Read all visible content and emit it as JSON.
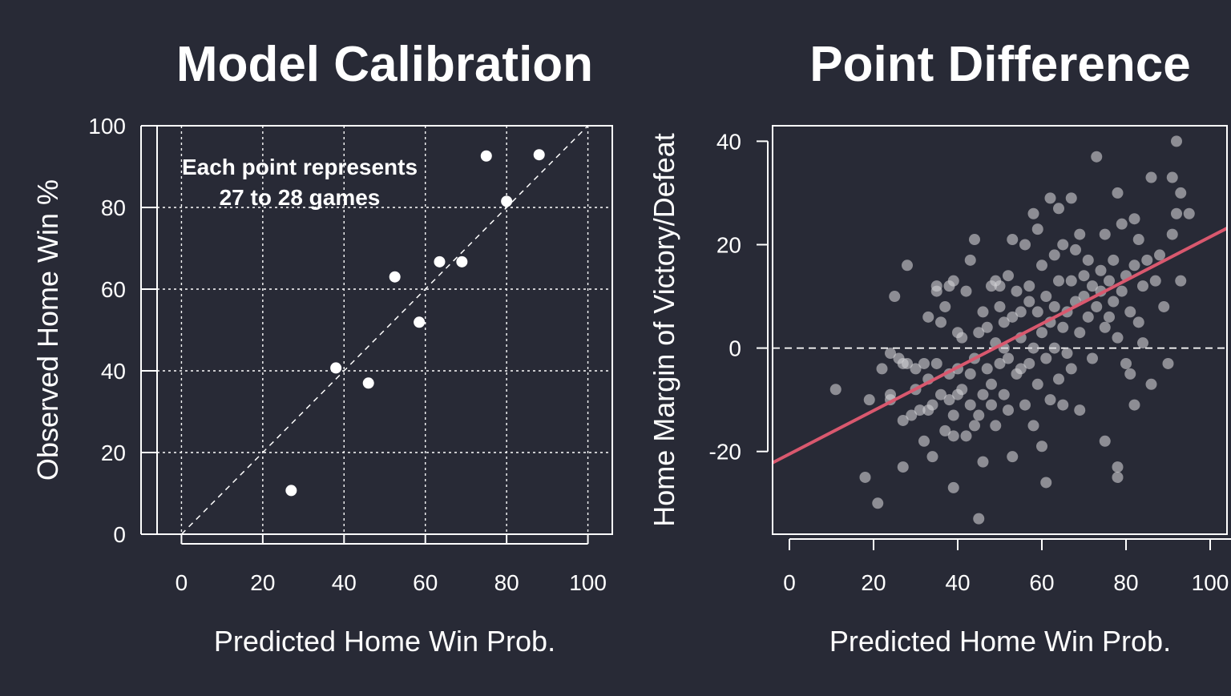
{
  "colors": {
    "background": "#282a36",
    "foreground": "#ffffff",
    "scatter_point": "#d0d0d4",
    "regression_line": "#d9586e"
  },
  "chart_data": [
    {
      "type": "scatter",
      "title": "Model Calibration",
      "xlabel": "Predicted Home Win Prob.",
      "ylabel": "Observed Home Win %",
      "xlim": [
        -6,
        106
      ],
      "ylim": [
        0,
        100
      ],
      "xticks": [
        "0",
        "20",
        "40",
        "60",
        "80",
        "100"
      ],
      "yticks": [
        "0",
        "20",
        "40",
        "60",
        "80",
        "100"
      ],
      "grid": true,
      "annotation": [
        "Each point represents",
        "27 to 28 games"
      ],
      "reference_line": "y = x (dashed)",
      "points": [
        {
          "x": 27,
          "y": 10.7
        },
        {
          "x": 38,
          "y": 40.7
        },
        {
          "x": 46,
          "y": 37
        },
        {
          "x": 52.5,
          "y": 63
        },
        {
          "x": 58.5,
          "y": 51.9
        },
        {
          "x": 63.5,
          "y": 66.7
        },
        {
          "x": 69,
          "y": 66.7
        },
        {
          "x": 75,
          "y": 92.6
        },
        {
          "x": 80,
          "y": 81.5
        },
        {
          "x": 88,
          "y": 92.9
        }
      ]
    },
    {
      "type": "scatter",
      "title": "Point Difference",
      "xlabel": "Predicted Home Win Prob.",
      "ylabel": "Home Margin of Victory/Defeat",
      "xlim": [
        -4,
        104
      ],
      "ylim": [
        -36,
        43
      ],
      "xticks": [
        "0",
        "20",
        "40",
        "60",
        "80",
        "100"
      ],
      "yticks": [
        "-20",
        "0",
        "20",
        "40"
      ],
      "grid": false,
      "zero_line": "dashed at y = 0",
      "regression": {
        "intercept": -20.5,
        "slope": 0.42
      },
      "points": [
        {
          "x": 11,
          "y": -8
        },
        {
          "x": 18,
          "y": -25
        },
        {
          "x": 19,
          "y": -10
        },
        {
          "x": 21,
          "y": -30
        },
        {
          "x": 22,
          "y": -4
        },
        {
          "x": 24,
          "y": -9
        },
        {
          "x": 24,
          "y": -10
        },
        {
          "x": 24,
          "y": -1
        },
        {
          "x": 25,
          "y": 10
        },
        {
          "x": 26,
          "y": -2
        },
        {
          "x": 27,
          "y": -23
        },
        {
          "x": 27,
          "y": -14
        },
        {
          "x": 27,
          "y": -3
        },
        {
          "x": 28,
          "y": 16
        },
        {
          "x": 28,
          "y": -3
        },
        {
          "x": 29,
          "y": -13
        },
        {
          "x": 30,
          "y": -8
        },
        {
          "x": 30,
          "y": -4
        },
        {
          "x": 31,
          "y": -12
        },
        {
          "x": 32,
          "y": -3
        },
        {
          "x": 32,
          "y": -18
        },
        {
          "x": 33,
          "y": -12
        },
        {
          "x": 33,
          "y": -6
        },
        {
          "x": 33,
          "y": 6
        },
        {
          "x": 34,
          "y": -21
        },
        {
          "x": 34,
          "y": -11
        },
        {
          "x": 35,
          "y": 11
        },
        {
          "x": 35,
          "y": 12
        },
        {
          "x": 35,
          "y": -3
        },
        {
          "x": 36,
          "y": 5
        },
        {
          "x": 36,
          "y": -9
        },
        {
          "x": 37,
          "y": 8
        },
        {
          "x": 37,
          "y": -16
        },
        {
          "x": 38,
          "y": -10
        },
        {
          "x": 38,
          "y": 12
        },
        {
          "x": 38,
          "y": -5
        },
        {
          "x": 39,
          "y": -27
        },
        {
          "x": 39,
          "y": -13
        },
        {
          "x": 39,
          "y": 13
        },
        {
          "x": 39,
          "y": -17
        },
        {
          "x": 40,
          "y": 3
        },
        {
          "x": 40,
          "y": -9
        },
        {
          "x": 40,
          "y": -4
        },
        {
          "x": 41,
          "y": 2
        },
        {
          "x": 41,
          "y": -8
        },
        {
          "x": 42,
          "y": 11
        },
        {
          "x": 42,
          "y": -17
        },
        {
          "x": 43,
          "y": -5
        },
        {
          "x": 43,
          "y": -11
        },
        {
          "x": 43,
          "y": 17
        },
        {
          "x": 44,
          "y": 21
        },
        {
          "x": 44,
          "y": -2
        },
        {
          "x": 44,
          "y": -15
        },
        {
          "x": 45,
          "y": -33
        },
        {
          "x": 45,
          "y": 3
        },
        {
          "x": 45,
          "y": -13
        },
        {
          "x": 46,
          "y": -22
        },
        {
          "x": 46,
          "y": 7
        },
        {
          "x": 46,
          "y": -9
        },
        {
          "x": 47,
          "y": 4
        },
        {
          "x": 47,
          "y": -4
        },
        {
          "x": 48,
          "y": 12
        },
        {
          "x": 48,
          "y": -7
        },
        {
          "x": 48,
          "y": -11
        },
        {
          "x": 49,
          "y": 13
        },
        {
          "x": 49,
          "y": 1
        },
        {
          "x": 49,
          "y": -15
        },
        {
          "x": 50,
          "y": 8
        },
        {
          "x": 50,
          "y": -3
        },
        {
          "x": 50,
          "y": 12
        },
        {
          "x": 51,
          "y": 5
        },
        {
          "x": 51,
          "y": 0
        },
        {
          "x": 51,
          "y": -9
        },
        {
          "x": 52,
          "y": 14
        },
        {
          "x": 52,
          "y": -2
        },
        {
          "x": 52,
          "y": -12
        },
        {
          "x": 53,
          "y": 21
        },
        {
          "x": 53,
          "y": 6
        },
        {
          "x": 53,
          "y": -21
        },
        {
          "x": 54,
          "y": 11
        },
        {
          "x": 54,
          "y": -5
        },
        {
          "x": 55,
          "y": 7
        },
        {
          "x": 55,
          "y": 2
        },
        {
          "x": 55,
          "y": -4
        },
        {
          "x": 56,
          "y": 20
        },
        {
          "x": 56,
          "y": -11
        },
        {
          "x": 57,
          "y": 9
        },
        {
          "x": 57,
          "y": -3
        },
        {
          "x": 57,
          "y": 12
        },
        {
          "x": 58,
          "y": 26
        },
        {
          "x": 58,
          "y": 0
        },
        {
          "x": 58,
          "y": -15
        },
        {
          "x": 59,
          "y": 23
        },
        {
          "x": 59,
          "y": 7
        },
        {
          "x": 59,
          "y": -7
        },
        {
          "x": 60,
          "y": 16
        },
        {
          "x": 60,
          "y": 3
        },
        {
          "x": 60,
          "y": -19
        },
        {
          "x": 61,
          "y": 10
        },
        {
          "x": 61,
          "y": -2
        },
        {
          "x": 61,
          "y": -26
        },
        {
          "x": 62,
          "y": 29
        },
        {
          "x": 62,
          "y": 5
        },
        {
          "x": 62,
          "y": -10
        },
        {
          "x": 63,
          "y": 18
        },
        {
          "x": 63,
          "y": 0
        },
        {
          "x": 63,
          "y": 8
        },
        {
          "x": 64,
          "y": 27
        },
        {
          "x": 64,
          "y": 13
        },
        {
          "x": 64,
          "y": -6
        },
        {
          "x": 65,
          "y": 20
        },
        {
          "x": 65,
          "y": 4
        },
        {
          "x": 65,
          "y": -11
        },
        {
          "x": 66,
          "y": 7
        },
        {
          "x": 66,
          "y": -1
        },
        {
          "x": 67,
          "y": 29
        },
        {
          "x": 67,
          "y": 13
        },
        {
          "x": 67,
          "y": -4
        },
        {
          "x": 68,
          "y": 19
        },
        {
          "x": 68,
          "y": 9
        },
        {
          "x": 69,
          "y": 22
        },
        {
          "x": 69,
          "y": 3
        },
        {
          "x": 69,
          "y": -12
        },
        {
          "x": 70,
          "y": 14
        },
        {
          "x": 70,
          "y": 10
        },
        {
          "x": 71,
          "y": 6
        },
        {
          "x": 71,
          "y": 17
        },
        {
          "x": 72,
          "y": 12
        },
        {
          "x": 72,
          "y": -2
        },
        {
          "x": 73,
          "y": 37
        },
        {
          "x": 73,
          "y": 8
        },
        {
          "x": 74,
          "y": 15
        },
        {
          "x": 74,
          "y": 11
        },
        {
          "x": 75,
          "y": 22
        },
        {
          "x": 75,
          "y": -18
        },
        {
          "x": 75,
          "y": 4
        },
        {
          "x": 76,
          "y": 13
        },
        {
          "x": 76,
          "y": 6
        },
        {
          "x": 77,
          "y": 17
        },
        {
          "x": 77,
          "y": 9
        },
        {
          "x": 78,
          "y": 30
        },
        {
          "x": 78,
          "y": -23
        },
        {
          "x": 78,
          "y": -25
        },
        {
          "x": 78,
          "y": 2
        },
        {
          "x": 79,
          "y": 24
        },
        {
          "x": 79,
          "y": 11
        },
        {
          "x": 80,
          "y": 14
        },
        {
          "x": 80,
          "y": -3
        },
        {
          "x": 81,
          "y": 7
        },
        {
          "x": 81,
          "y": -5
        },
        {
          "x": 82,
          "y": 25
        },
        {
          "x": 82,
          "y": 16
        },
        {
          "x": 82,
          "y": -11
        },
        {
          "x": 83,
          "y": 21
        },
        {
          "x": 83,
          "y": 5
        },
        {
          "x": 84,
          "y": 12
        },
        {
          "x": 84,
          "y": 1
        },
        {
          "x": 85,
          "y": 17
        },
        {
          "x": 86,
          "y": 33
        },
        {
          "x": 86,
          "y": -7
        },
        {
          "x": 87,
          "y": 13
        },
        {
          "x": 88,
          "y": 18
        },
        {
          "x": 89,
          "y": 8
        },
        {
          "x": 90,
          "y": -3
        },
        {
          "x": 91,
          "y": 33
        },
        {
          "x": 91,
          "y": 22
        },
        {
          "x": 92,
          "y": 40
        },
        {
          "x": 92,
          "y": 26
        },
        {
          "x": 93,
          "y": 30
        },
        {
          "x": 93,
          "y": 13
        },
        {
          "x": 95,
          "y": 26
        }
      ]
    }
  ]
}
